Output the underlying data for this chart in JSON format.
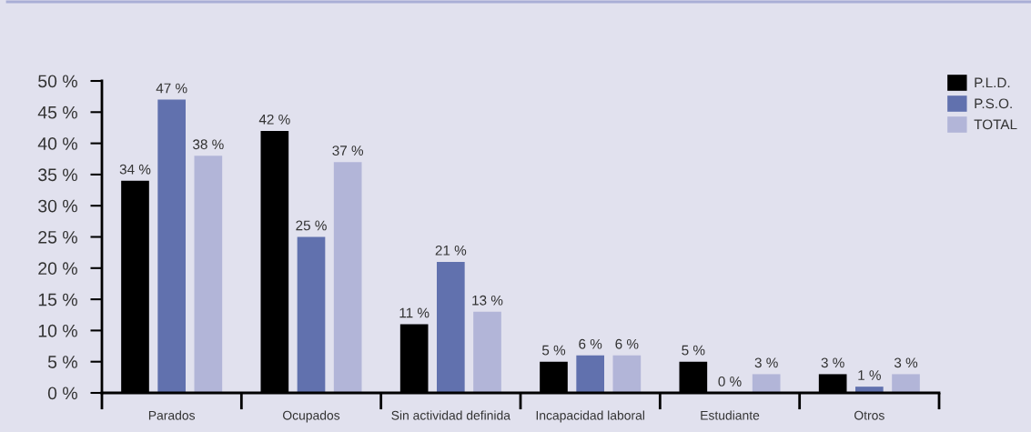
{
  "chart_data": {
    "type": "bar",
    "categories": [
      "Parados",
      "Ocupados",
      "Sin actividad definida",
      "Incapacidad laboral",
      "Estudiante",
      "Otros"
    ],
    "series": [
      {
        "name": "P.L.D.",
        "color": "#000000",
        "values": [
          34,
          42,
          11,
          5,
          5,
          3
        ],
        "value_labels": [
          "34 %",
          "42 %",
          "11 %",
          "5 %",
          "5 %",
          "3 %"
        ]
      },
      {
        "name": "P.S.O.",
        "color": "#6171ae",
        "values": [
          47,
          25,
          21,
          6,
          0,
          1
        ],
        "value_labels": [
          "47 %",
          "25 %",
          "21 %",
          "6 %",
          "0 %",
          "1 %"
        ]
      },
      {
        "name": "TOTAL",
        "color": "#b2b5d8",
        "values": [
          38,
          37,
          13,
          6,
          3,
          3
        ],
        "value_labels": [
          "38 %",
          "37 %",
          "13 %",
          "6 %",
          "3 %",
          "3 %"
        ]
      }
    ],
    "ylim": [
      0,
      50
    ],
    "yticks": [
      {
        "value": 0,
        "label": "0 %"
      },
      {
        "value": 5,
        "label": "5 %"
      },
      {
        "value": 10,
        "label": "10 %"
      },
      {
        "value": 15,
        "label": "15 %"
      },
      {
        "value": 20,
        "label": "20 %"
      },
      {
        "value": 25,
        "label": "25 %"
      },
      {
        "value": 30,
        "label": "30 %"
      },
      {
        "value": 35,
        "label": "35 %"
      },
      {
        "value": 40,
        "label": "40 %"
      },
      {
        "value": 45,
        "label": "45 %"
      },
      {
        "value": 50,
        "label": "50 %"
      }
    ],
    "legend": "top right",
    "grid": false
  }
}
